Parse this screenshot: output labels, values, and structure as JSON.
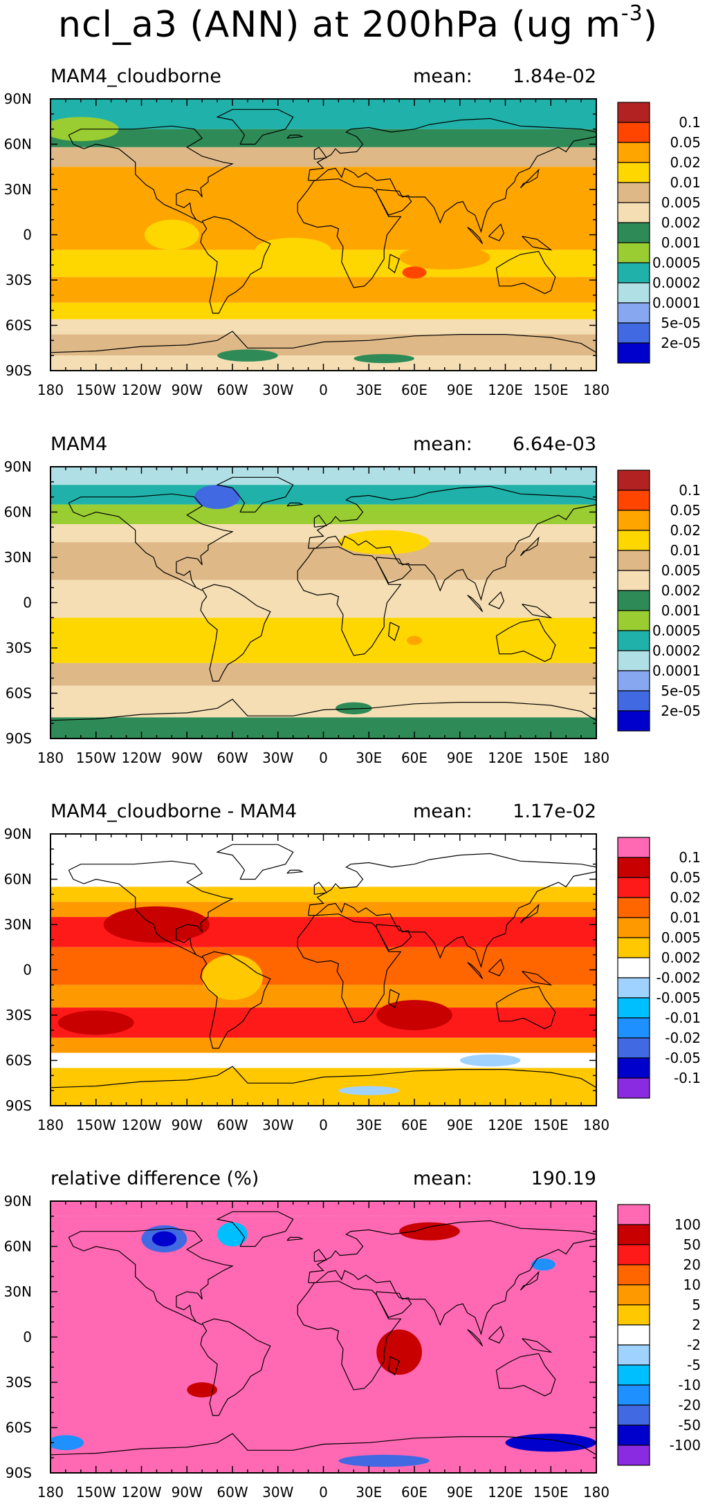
{
  "main_title": {
    "text": "ncl_a3 (ANN) at 200hPa (ug m",
    "exponent": "-3",
    "close": ")"
  },
  "axes": {
    "lat_labels": [
      "90N",
      "60N",
      "30N",
      "0",
      "30S",
      "60S",
      "90S"
    ],
    "lon_labels": [
      "180",
      "150W",
      "120W",
      "90W",
      "60W",
      "30W",
      "0",
      "30E",
      "60E",
      "90E",
      "120E",
      "150E",
      "180"
    ]
  },
  "chart_data": [
    {
      "type": "heatmap",
      "title": "MAM4_cloudborne",
      "mean_label": "mean:",
      "mean_value": "1.84e-02",
      "colorbar": {
        "labels": [
          "0.1",
          "0.05",
          "0.02",
          "0.01",
          "0.005",
          "0.002",
          "0.001",
          "0.0005",
          "0.0002",
          "0.0001",
          "5e-05",
          "2e-05"
        ],
        "colors": [
          "#b22222",
          "#ff4500",
          "#ffa500",
          "#ffd700",
          "#deb887",
          "#f5deb3",
          "#2e8b57",
          "#9acd32",
          "#20b2aa",
          "#b0e0e6",
          "#87a8f0",
          "#4169e1",
          "#0000cd"
        ]
      },
      "dominant_levels": {
        "tropics": "0.01-0.02",
        "midlatitudes": "0.005-0.01",
        "polar": "0.0005-0.002"
      }
    },
    {
      "type": "heatmap",
      "title": "MAM4",
      "mean_label": "mean:",
      "mean_value": "6.64e-03",
      "colorbar": {
        "labels": [
          "0.1",
          "0.05",
          "0.02",
          "0.01",
          "0.005",
          "0.002",
          "0.001",
          "0.0005",
          "0.0002",
          "0.0001",
          "5e-05",
          "2e-05"
        ],
        "colors": [
          "#b22222",
          "#ff4500",
          "#ffa500",
          "#ffd700",
          "#deb887",
          "#f5deb3",
          "#2e8b57",
          "#9acd32",
          "#20b2aa",
          "#b0e0e6",
          "#87a8f0",
          "#4169e1",
          "#0000cd"
        ]
      },
      "dominant_levels": {
        "tropics": "0.005-0.01",
        "midlatitudes": "0.002-0.005",
        "polar": "0.0002-0.001"
      }
    },
    {
      "type": "heatmap",
      "title": "MAM4_cloudborne - MAM4",
      "mean_label": "mean:",
      "mean_value": "1.17e-02",
      "colorbar": {
        "labels": [
          "0.1",
          "0.05",
          "0.02",
          "0.01",
          "0.005",
          "0.002",
          "-0.002",
          "-0.005",
          "-0.01",
          "-0.02",
          "-0.05",
          "-0.1"
        ],
        "colors": [
          "#ff69b4",
          "#c80000",
          "#ff1a1a",
          "#ff6600",
          "#ff9900",
          "#ffc800",
          "#ffffff",
          "#a0d2ff",
          "#00bfff",
          "#1e90ff",
          "#4169e1",
          "#0000cd",
          "#8a2be2"
        ]
      },
      "dominant_levels": {
        "tropics": "0.01-0.05",
        "midlatitudes": "0.002-0.01",
        "polar": "-0.002-0.002"
      }
    },
    {
      "type": "heatmap",
      "title": "relative difference (%)",
      "mean_label": "mean:",
      "mean_value": "190.19",
      "colorbar": {
        "labels": [
          "100",
          "50",
          "20",
          "10",
          "5",
          "2",
          "-2",
          "-5",
          "-10",
          "-20",
          "-50",
          "-100"
        ],
        "colors": [
          "#ff69b4",
          "#c80000",
          "#ff1a1a",
          "#ff6600",
          "#ff9900",
          "#ffc800",
          "#ffffff",
          "#a0d2ff",
          "#00bfff",
          "#1e90ff",
          "#4169e1",
          "#0000cd",
          "#8a2be2"
        ]
      },
      "dominant_levels": {
        "global": ">100",
        "polar_patches": "-100 to -20"
      }
    }
  ]
}
